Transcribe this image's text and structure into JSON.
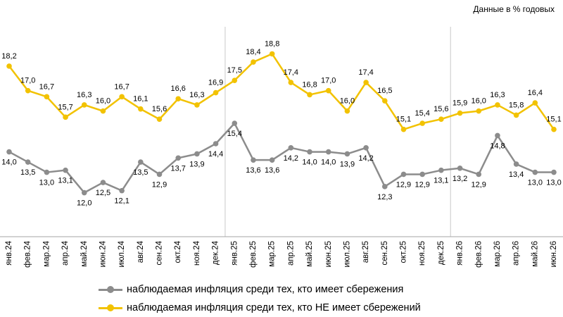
{
  "unit_note": "Данные в % годовых",
  "colors": {
    "savers": "#8c8c8c",
    "non_savers": "#f2c200",
    "divider": "#c8c8c8",
    "axis": "#a6a6a6"
  },
  "chart_data": {
    "type": "line",
    "title": "",
    "xlabel": "",
    "ylabel": "",
    "categories": [
      "янв.24",
      "фев.24",
      "мар.24",
      "апр.24",
      "май.24",
      "июн.24",
      "июл.24",
      "авг.24",
      "сен.24",
      "окт.24",
      "ноя.24",
      "дек.24",
      "янв.25",
      "фев.25",
      "мар.25",
      "апр.25",
      "май.25",
      "июн.25",
      "июл.25",
      "авг.25",
      "сен.25",
      "окт.25",
      "ноя.25",
      "дек.25",
      "янв.26",
      "фев.26",
      "мар.26",
      "апр.26",
      "май.26",
      "июн.26"
    ],
    "ylim": [
      10.5,
      19.3
    ],
    "grid": false,
    "legend_position": "bottom",
    "series": [
      {
        "name": "наблюдаемая  инфляция  среди тех, кто имеет сбережения",
        "color": "#8c8c8c",
        "values": [
          14.0,
          13.5,
          13.0,
          13.1,
          12.0,
          12.5,
          12.1,
          13.5,
          12.9,
          13.7,
          13.9,
          14.4,
          15.4,
          13.6,
          13.6,
          14.2,
          14.0,
          14.0,
          13.9,
          14.2,
          12.3,
          12.9,
          12.9,
          13.1,
          13.2,
          12.9,
          14.8,
          13.4,
          13.0,
          13.0
        ],
        "labels": [
          "14,0",
          "13,5",
          "13,0",
          "13,1",
          "12,0",
          "12,5",
          "12,1",
          "13,5",
          "12,9",
          "13,7",
          "13,9",
          "14,4",
          "15,4",
          "13,6",
          "13,6",
          "14,2",
          "14,0",
          "14,0",
          "13,9",
          "14,2",
          "12,3",
          "12,9",
          "12,9",
          "13,1",
          "13,2",
          "12,9",
          "14,8",
          "13,4",
          "13,0",
          "13,0"
        ]
      },
      {
        "name": "наблюдаемая  инфляция  среди тех, кто НЕ имеет сбережений",
        "color": "#f2c200",
        "values": [
          18.2,
          17.0,
          16.7,
          15.7,
          16.3,
          16.0,
          16.7,
          16.1,
          15.6,
          16.6,
          16.3,
          16.9,
          17.5,
          18.4,
          18.8,
          17.4,
          16.8,
          17.0,
          16.0,
          17.4,
          16.5,
          15.1,
          15.4,
          15.6,
          15.9,
          16.0,
          16.3,
          15.8,
          16.4,
          15.1
        ],
        "labels": [
          "18,2",
          "17,0",
          "16,7",
          "15,7",
          "16,3",
          "16,0",
          "16,7",
          "16,1",
          "15,6",
          "16,6",
          "16,3",
          "16,9",
          "17,5",
          "18,4",
          "18,8",
          "17,4",
          "16,8",
          "17,0",
          "16,0",
          "17,4",
          "16,5",
          "15,1",
          "15,4",
          "15,6",
          "15,9",
          "16,0",
          "16,3",
          "15,8",
          "16,4",
          "15,1"
        ]
      }
    ],
    "year_dividers_after": [
      "дек.24",
      "дек.25"
    ]
  }
}
